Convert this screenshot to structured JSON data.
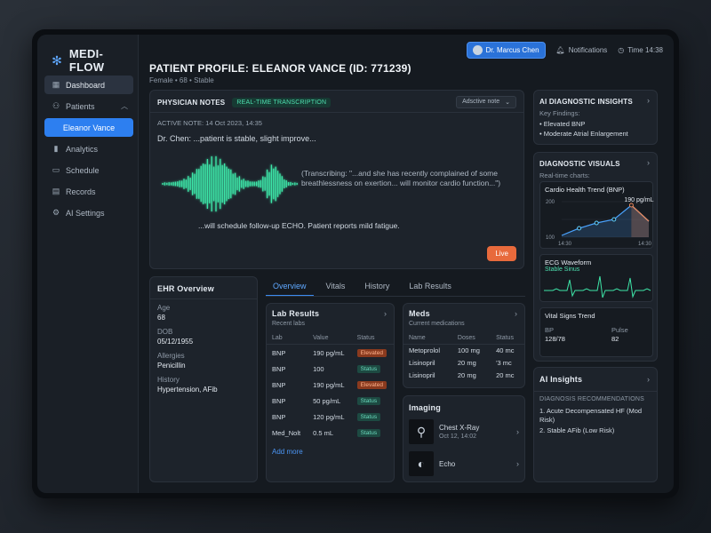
{
  "brand": {
    "name": "MEDI-FLOW"
  },
  "sidebar": {
    "items": [
      {
        "label": "Dashboard",
        "icon": "grid-icon"
      },
      {
        "label": "Patients",
        "icon": "users-icon"
      },
      {
        "label": "Eleanor Vance"
      },
      {
        "label": "Analytics",
        "icon": "bar-chart-icon"
      },
      {
        "label": "Schedule",
        "icon": "calendar-icon"
      },
      {
        "label": "Records",
        "icon": "file-icon"
      },
      {
        "label": "AI Settings",
        "icon": "gear-icon"
      }
    ]
  },
  "topbar": {
    "doctor": "Dr. Marcus Chen",
    "notifications": "Notifications",
    "time": "Time 14:38"
  },
  "patient": {
    "title": "PATIENT PROFILE: ELEANOR VANCE (ID: 771239)",
    "subtitle": "Female • 68 • Stable"
  },
  "notes": {
    "title": "PHYSICIAN NOTES",
    "pill": "REAL-TIME TRANSCRIPTION",
    "select": "Adsctive note",
    "active_note": "ACTIVE NOTE: 14 Oct 2023, 14:35",
    "line1": "Dr. Chen:  ...patient is stable, slight improve...",
    "transcribing": "(Transcribing: \"...and she has recently complained of some breathlessness on exertion... will monitor cardio function...\")",
    "line2": "...will schedule follow-up ECHO. Patient reports mild fatigue.",
    "live": "Live"
  },
  "ehr": {
    "title": "EHR Overview",
    "fields": [
      {
        "k": "Age",
        "v": "68"
      },
      {
        "k": "DOB",
        "v": "05/12/1955"
      },
      {
        "k": "Allergies",
        "v": "Penicillin"
      },
      {
        "k": "History",
        "v": "Hypertension, AFib"
      }
    ]
  },
  "tabs": [
    "Overview",
    "Vitals",
    "History",
    "Lab Results"
  ],
  "lab": {
    "title": "Lab Results",
    "sub": "Recent labs",
    "cols": [
      "Lab",
      "Value",
      "Status"
    ],
    "rows": [
      {
        "lab": "BNP",
        "value": "190 pg/mL",
        "status": "Elevated"
      },
      {
        "lab": "BNP",
        "value": "100",
        "status": "Status"
      },
      {
        "lab": "BNP",
        "value": "190 pg/mL",
        "status": "Elevated"
      },
      {
        "lab": "BNP",
        "value": "50 pg/mL",
        "status": "Status"
      },
      {
        "lab": "BNP",
        "value": "120 pg/mL",
        "status": "Status"
      },
      {
        "lab": "Med_Nolt",
        "value": "0.5 mL",
        "status": "Status"
      }
    ],
    "add_more": "Add more"
  },
  "meds": {
    "title": "Meds",
    "sub": "Current medications",
    "cols": [
      "Name",
      "Doses",
      "Status"
    ],
    "rows": [
      {
        "name": "Metoprolol",
        "dose": "100 mg",
        "status": "40 mc"
      },
      {
        "name": "Lisinopril",
        "dose": "20 mg",
        "status": "'3 mc"
      },
      {
        "name": "Lisinopril",
        "dose": "20 mg",
        "status": "20 mc"
      }
    ]
  },
  "imaging": {
    "title": "Imaging",
    "items": [
      {
        "name": "Chest X-Ray",
        "date": "Oct 12, 14:02"
      },
      {
        "name": "Echo",
        "date": ""
      }
    ]
  },
  "ai_diag": {
    "title": "AI DIAGNOSTIC INSIGHTS",
    "key": "Key Findings:",
    "findings": [
      "• Elevated BNP",
      "• Moderate Atrial Enlargement"
    ]
  },
  "visuals": {
    "title": "DIAGNOSTIC VISUALS",
    "sub": "Real-time charts:",
    "ecg_title": "ECG Waveform",
    "ecg_status": "Stable Sinus",
    "vs_title": "Vital Signs Trend",
    "bp_label": "BP",
    "bp_value": "128/78",
    "pulse_label": "Pulse",
    "pulse_value": "82"
  },
  "chart_data": {
    "type": "line",
    "title": "Cardio Health Trend (BNP)",
    "x": [
      0,
      1,
      2,
      3,
      4,
      5
    ],
    "values": [
      105,
      125,
      140,
      150,
      190,
      145
    ],
    "ylim": [
      100,
      200
    ],
    "yticks": [
      "200",
      "100"
    ],
    "xticks": [
      "14:30",
      "14:30"
    ],
    "annotation": "190 pg/mL",
    "color": "#4aa3ff",
    "highlight_color": "#e8875a"
  },
  "insights": {
    "title": "AI Insights",
    "label": "DIAGNOSIS RECOMMENDATIONS",
    "items": [
      "1. Acute Decompensated HF (Mod Risk)",
      "2. Stable AFib (Low Risk)"
    ]
  }
}
